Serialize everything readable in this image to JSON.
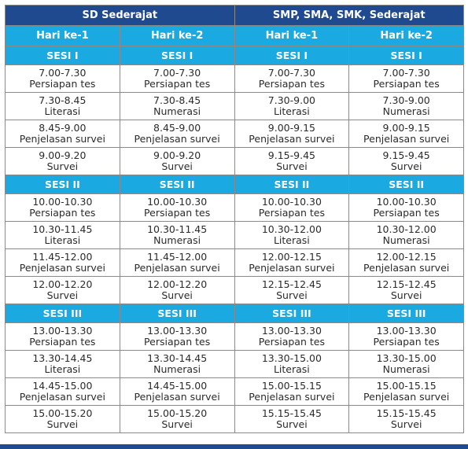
{
  "groups": [
    "SD Sederajat",
    "SMP, SMA, SMK, Sederajat"
  ],
  "days": [
    "Hari ke-1",
    "Hari ke-2",
    "Hari ke-1",
    "Hari ke-2"
  ],
  "sessions": [
    {
      "label": "SESI I",
      "rows": [
        [
          [
            "7.00-7.30",
            "Persiapan tes"
          ],
          [
            "7.00-7.30",
            "Persiapan tes"
          ],
          [
            "7.00-7.30",
            "Persiapan tes"
          ],
          [
            "7.00-7.30",
            "Persiapan tes"
          ]
        ],
        [
          [
            "7.30-8.45",
            "Literasi"
          ],
          [
            "7.30-8.45",
            "Numerasi"
          ],
          [
            "7.30-9.00",
            "Literasi"
          ],
          [
            "7.30-9.00",
            "Numerasi"
          ]
        ],
        [
          [
            "8.45-9.00",
            "Penjelasan survei"
          ],
          [
            "8.45-9.00",
            "Penjelasan survei"
          ],
          [
            "9.00-9.15",
            "Penjelasan survei"
          ],
          [
            "9.00-9.15",
            "Penjelasan survei"
          ]
        ],
        [
          [
            "9.00-9.20",
            "Survei"
          ],
          [
            "9.00-9.20",
            "Survei"
          ],
          [
            "9.15-9.45",
            "Survei"
          ],
          [
            "9.15-9.45",
            "Survei"
          ]
        ]
      ]
    },
    {
      "label": "SESI II",
      "rows": [
        [
          [
            "10.00-10.30",
            "Persiapan tes"
          ],
          [
            "10.00-10.30",
            "Persiapan tes"
          ],
          [
            "10.00-10.30",
            "Persiapan tes"
          ],
          [
            "10.00-10.30",
            "Persiapan tes"
          ]
        ],
        [
          [
            "10.30-11.45",
            "Literasi"
          ],
          [
            "10.30-11.45",
            "Numerasi"
          ],
          [
            "10.30-12.00",
            "Literasi"
          ],
          [
            "10.30-12.00",
            "Numerasi"
          ]
        ],
        [
          [
            "11.45-12.00",
            "Penjelasan survei"
          ],
          [
            "11.45-12.00",
            "Penjelasan survei"
          ],
          [
            "12.00-12.15",
            "Penjelasan survei"
          ],
          [
            "12.00-12.15",
            "Penjelasan survei"
          ]
        ],
        [
          [
            "12.00-12.20",
            "Survei"
          ],
          [
            "12.00-12.20",
            "Survei"
          ],
          [
            "12.15-12.45",
            "Survei"
          ],
          [
            "12.15-12.45",
            "Survei"
          ]
        ]
      ]
    },
    {
      "label": "SESI III",
      "rows": [
        [
          [
            "13.00-13.30",
            "Persiapan tes"
          ],
          [
            "13.00-13.30",
            "Persiapan tes"
          ],
          [
            "13.00-13.30",
            "Persiapan tes"
          ],
          [
            "13.00-13.30",
            "Persiapan tes"
          ]
        ],
        [
          [
            "13.30-14.45",
            "Literasi"
          ],
          [
            "13.30-14.45",
            "Numerasi"
          ],
          [
            "13.30-15.00",
            "Literasi"
          ],
          [
            "13.30-15.00",
            "Numerasi"
          ]
        ],
        [
          [
            "14.45-15.00",
            "Penjelasan survei"
          ],
          [
            "14.45-15.00",
            "Penjelasan survei"
          ],
          [
            "15.00-15.15",
            "Penjelasan survei"
          ],
          [
            "15.00-15.15",
            "Penjelasan survei"
          ]
        ],
        [
          [
            "15.00-15.20",
            "Survei"
          ],
          [
            "15.00-15.20",
            "Survei"
          ],
          [
            "15.15-15.45",
            "Survei"
          ],
          [
            "15.15-15.45",
            "Survei"
          ]
        ]
      ]
    }
  ],
  "colors": {
    "header_dark": "#1f4a8f",
    "header_light": "#1aa9e0",
    "cell_bg": "#ffffff",
    "cell_text": "#2b2b2b",
    "border": "#8a8a8a"
  }
}
